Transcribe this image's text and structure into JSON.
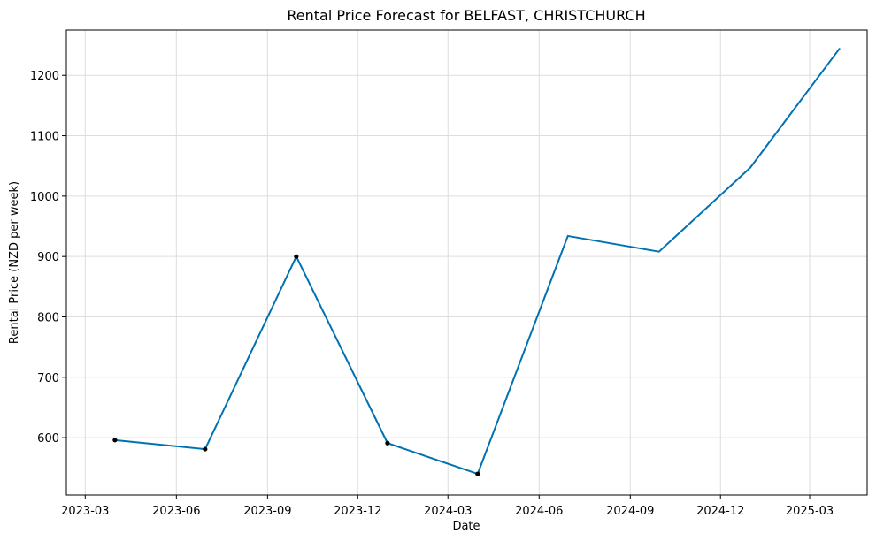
{
  "chart_data": {
    "type": "line",
    "title": "Rental Price Forecast for BELFAST, CHRISTCHURCH",
    "xlabel": "Date",
    "ylabel": "Rental Price (NZD per week)",
    "x_ticks": [
      "2023-03",
      "2023-06",
      "2023-09",
      "2023-12",
      "2024-03",
      "2024-06",
      "2024-09",
      "2024-12",
      "2025-03"
    ],
    "y_ticks": [
      600,
      700,
      800,
      900,
      1000,
      1100,
      1200
    ],
    "xlim": [
      "2023-02-10",
      "2025-04-28"
    ],
    "ylim": [
      505,
      1275
    ],
    "grid": true,
    "series": [
      {
        "values": [
          {
            "x": "2023-03-31",
            "y": 596
          },
          {
            "x": "2023-06-30",
            "y": 581
          },
          {
            "x": "2023-09-30",
            "y": 900
          },
          {
            "x": "2023-12-31",
            "y": 591
          },
          {
            "x": "2024-03-31",
            "y": 540
          },
          {
            "x": "2024-06-30",
            "y": 934
          },
          {
            "x": "2024-09-30",
            "y": 908
          },
          {
            "x": "2024-12-31",
            "y": 1047
          },
          {
            "x": "2025-03-31",
            "y": 1244
          }
        ],
        "color": "#0072b2"
      }
    ],
    "observed_points": [
      {
        "x": "2023-03-31",
        "y": 596
      },
      {
        "x": "2023-06-30",
        "y": 581
      },
      {
        "x": "2023-09-30",
        "y": 900
      },
      {
        "x": "2023-12-31",
        "y": 591
      },
      {
        "x": "2024-03-31",
        "y": 540
      }
    ],
    "point_color": "#000000",
    "grid_color": "#dddddd"
  }
}
